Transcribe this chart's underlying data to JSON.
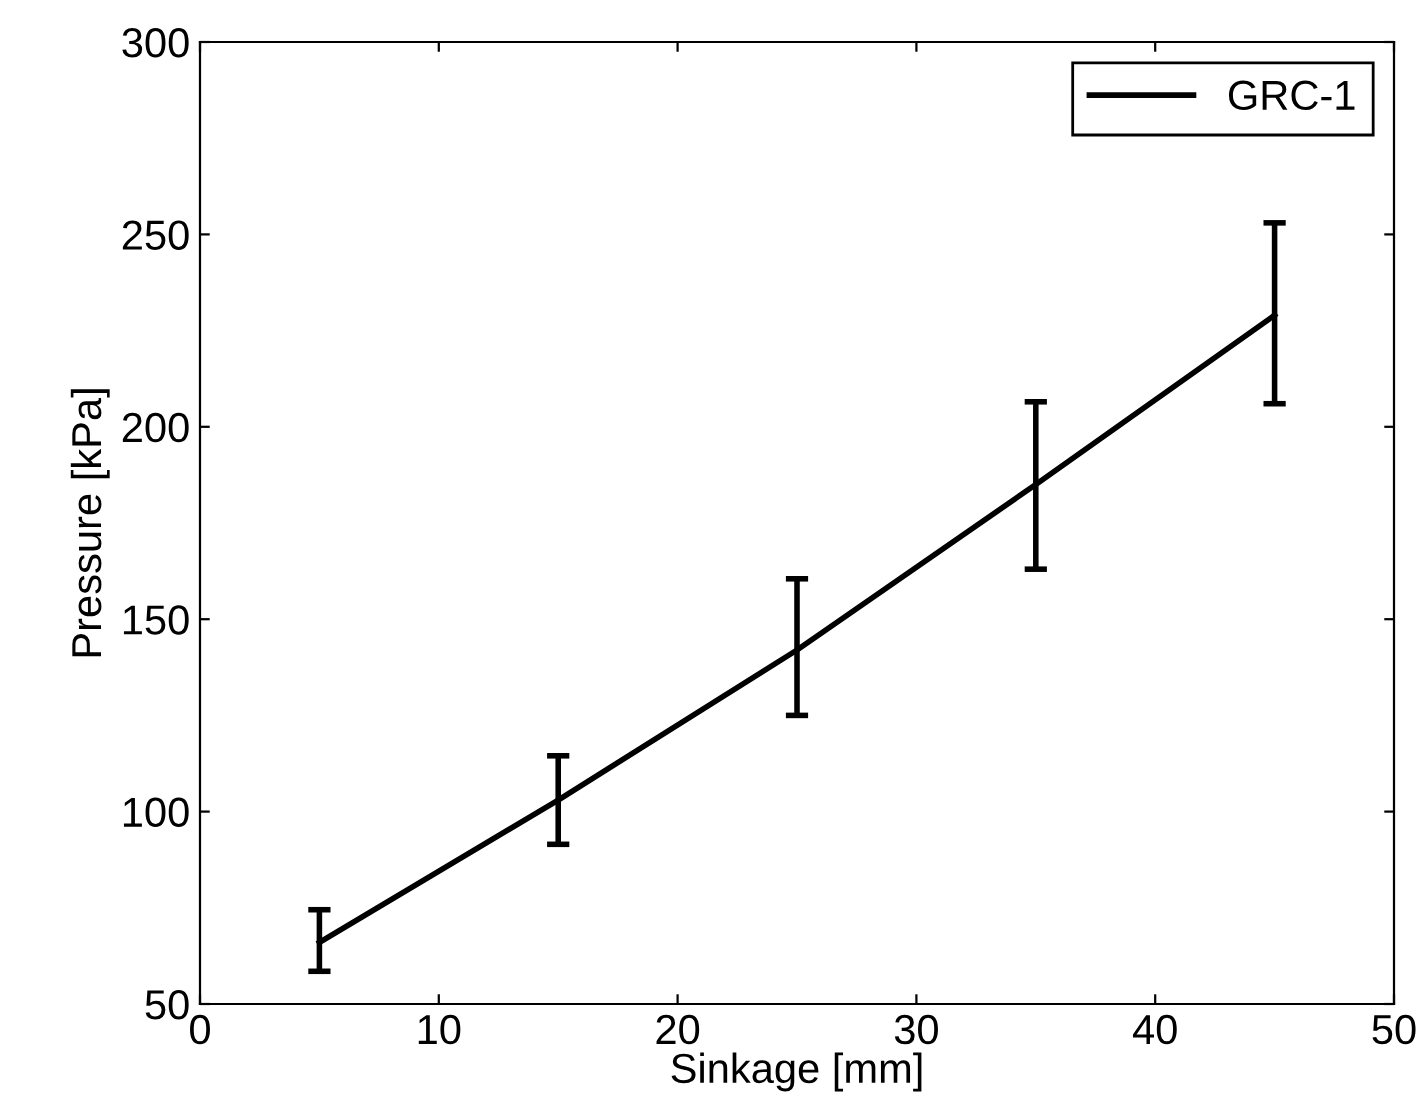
{
  "chart_data": {
    "type": "line",
    "xlabel": "Sinkage [mm]",
    "ylabel": "Pressure [kPa]",
    "x": [
      5,
      15,
      25,
      35,
      45
    ],
    "series": [
      {
        "name": "GRC-1",
        "color": "#000000",
        "values": [
          66,
          103,
          142,
          185,
          229
        ],
        "errors": [
          [
            58.5,
            74.5
          ],
          [
            91.5,
            114.5
          ],
          [
            125,
            160.5
          ],
          [
            163,
            206.5
          ],
          [
            206,
            253
          ]
        ]
      }
    ],
    "xlim": [
      0,
      50
    ],
    "xticks": [
      0,
      10,
      20,
      30,
      40,
      50
    ],
    "ylim": [
      50,
      300
    ],
    "yticks": [
      50,
      100,
      150,
      200,
      250,
      300
    ],
    "grid": false,
    "legend": "top right",
    "marker": "none",
    "line_style": "solid"
  }
}
